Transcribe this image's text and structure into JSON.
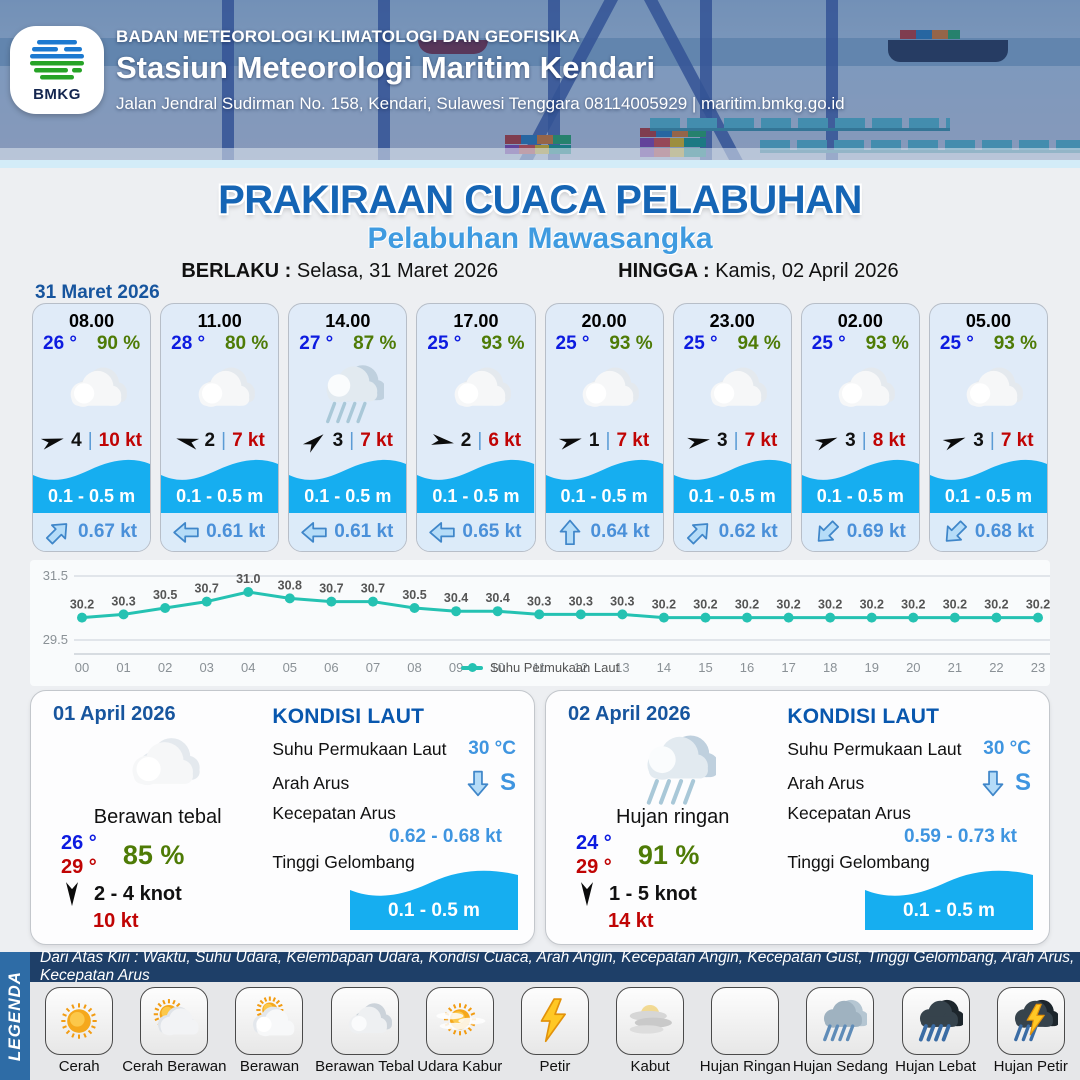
{
  "header": {
    "agency": "BADAN METEOROLOGI KLIMATOLOGI DAN GEOFISIKA",
    "station": "Stasiun Meteorologi Maritim Kendari",
    "address": "Jalan Jendral Sudirman No. 158, Kendari, Sulawesi Tenggara  08114005929 | maritim.bmkg.go.id",
    "logo_label": "BMKG"
  },
  "title": {
    "main": "PRAKIRAAN CUACA PELABUHAN",
    "subtitle": "Pelabuhan Mawasangka",
    "valid_from_label": "BERLAKU :",
    "valid_from": "Selasa, 31 Maret 2026",
    "valid_to_label": "HINGGA :",
    "valid_to": "Kamis, 02 April 2026"
  },
  "labels": {
    "separator": "|"
  },
  "hourly": {
    "date": "31 Maret 2026",
    "cards": [
      {
        "time": "08.00",
        "temp": "26 °",
        "humidity": "90 %",
        "icon": "cloud",
        "wind_speed": "4",
        "gust": "10 kt",
        "wind_deg": -15,
        "wave": "0.1 - 0.5 m",
        "current": "0.67 kt",
        "current_deg": 45
      },
      {
        "time": "11.00",
        "temp": "28 °",
        "humidity": "80 %",
        "icon": "cloud",
        "wind_speed": "2",
        "gust": "7 kt",
        "wind_deg": 195,
        "wave": "0.1 - 0.5 m",
        "current": "0.61 kt",
        "current_deg": 270
      },
      {
        "time": "14.00",
        "temp": "27 °",
        "humidity": "87 %",
        "icon": "rain-light",
        "wind_speed": "3",
        "gust": "7 kt",
        "wind_deg": -40,
        "wave": "0.1 - 0.5 m",
        "current": "0.61 kt",
        "current_deg": 270
      },
      {
        "time": "17.00",
        "temp": "25 °",
        "humidity": "93 %",
        "icon": "cloud",
        "wind_speed": "2",
        "gust": "6 kt",
        "wind_deg": 10,
        "wave": "0.1 - 0.5 m",
        "current": "0.65 kt",
        "current_deg": 270
      },
      {
        "time": "20.00",
        "temp": "25 °",
        "humidity": "93 %",
        "icon": "cloud",
        "wind_speed": "1",
        "gust": "7 kt",
        "wind_deg": -15,
        "wave": "0.1 - 0.5 m",
        "current": "0.64 kt",
        "current_deg": 0
      },
      {
        "time": "23.00",
        "temp": "25 °",
        "humidity": "94 %",
        "icon": "cloud",
        "wind_speed": "3",
        "gust": "7 kt",
        "wind_deg": -10,
        "wave": "0.1 - 0.5 m",
        "current": "0.62 kt",
        "current_deg": 45
      },
      {
        "time": "02.00",
        "temp": "25 °",
        "humidity": "93 %",
        "icon": "cloud",
        "wind_speed": "3",
        "gust": "8 kt",
        "wind_deg": -20,
        "wave": "0.1 - 0.5 m",
        "current": "0.69 kt",
        "current_deg": 225
      },
      {
        "time": "05.00",
        "temp": "25 °",
        "humidity": "93 %",
        "icon": "cloud",
        "wind_speed": "3",
        "gust": "7 kt",
        "wind_deg": -20,
        "wave": "0.1 - 0.5 m",
        "current": "0.68 kt",
        "current_deg": 225
      }
    ]
  },
  "chart_data": {
    "type": "line",
    "x": [
      "00",
      "01",
      "02",
      "03",
      "04",
      "05",
      "06",
      "07",
      "08",
      "09",
      "10",
      "11",
      "12",
      "13",
      "14",
      "15",
      "16",
      "17",
      "18",
      "19",
      "20",
      "21",
      "22",
      "23"
    ],
    "series": [
      {
        "name": "Suhu Permukaan Laut",
        "values": [
          30.2,
          30.3,
          30.5,
          30.7,
          31.0,
          30.8,
          30.7,
          30.7,
          30.5,
          30.4,
          30.4,
          30.3,
          30.3,
          30.3,
          30.2,
          30.2,
          30.2,
          30.2,
          30.2,
          30.2,
          30.2,
          30.2,
          30.2,
          30.2
        ]
      }
    ],
    "ylim": [
      29.5,
      31.5
    ],
    "yticks": [
      31.5,
      29.5
    ],
    "line_color": "#25c2b2",
    "grid": true,
    "legend_position": "bottom"
  },
  "daily": [
    {
      "date": "01 April 2026",
      "icon": "cloud",
      "condition": "Berawan tebal",
      "temp_min": "26 °",
      "temp_max": "29 °",
      "humidity": "85 %",
      "wind_range": "2  - 4 knot",
      "wind_deg": 90,
      "gust": "10 kt",
      "sea": {
        "heading": "KONDISI LAUT",
        "sst_label": "Suhu Permukaan Laut",
        "sst": "30 °C",
        "dir_label": "Arah Arus",
        "dir": "S",
        "dir_deg": 180,
        "speed_label": "Kecepatan Arus",
        "speed": "0.62 - 0.68 kt",
        "wave_label": "Tinggi Gelombang",
        "wave": "0.1 - 0.5 m"
      }
    },
    {
      "date": "02 April 2026",
      "icon": "rain-light",
      "condition": "Hujan ringan",
      "temp_min": "24 °",
      "temp_max": "29 °",
      "humidity": "91 %",
      "wind_range": "1  - 5 knot",
      "wind_deg": 90,
      "gust": "14 kt",
      "sea": {
        "heading": "KONDISI LAUT",
        "sst_label": "Suhu Permukaan Laut",
        "sst": "30 °C",
        "dir_label": "Arah Arus",
        "dir": "S",
        "dir_deg": 180,
        "speed_label": "Kecepatan Arus",
        "speed": "0.59 - 0.73 kt",
        "wave_label": "Tinggi Gelombang",
        "wave": "0.1 - 0.5 m"
      }
    }
  ],
  "legend": {
    "title": "LEGENDA",
    "description": "Dari Atas Kiri : Waktu, Suhu Udara, Kelembapan Udara, Kondisi Cuaca, Arah Angin, Kecepatan Angin, Kecepatan Gust, Tinggi Gelombang, Arah Arus, Kecepatan Arus",
    "items": [
      {
        "label": "Cerah",
        "icon": "cerah"
      },
      {
        "label": "Cerah Berawan",
        "icon": "cerah-berawan"
      },
      {
        "label": "Berawan",
        "icon": "berawan"
      },
      {
        "label": "Berawan Tebal",
        "icon": "berawan-tebal"
      },
      {
        "label": "Udara Kabur",
        "icon": "udara-kabur"
      },
      {
        "label": "Petir",
        "icon": "petir"
      },
      {
        "label": "Kabut",
        "icon": "kabut"
      },
      {
        "label": "Hujan Ringan",
        "icon": "hujan-ringan"
      },
      {
        "label": "Hujan Sedang",
        "icon": "hujan-sedang"
      },
      {
        "label": "Hujan Lebat",
        "icon": "hujan-lebat"
      },
      {
        "label": "Hujan Petir",
        "icon": "hujan-petir"
      }
    ]
  }
}
